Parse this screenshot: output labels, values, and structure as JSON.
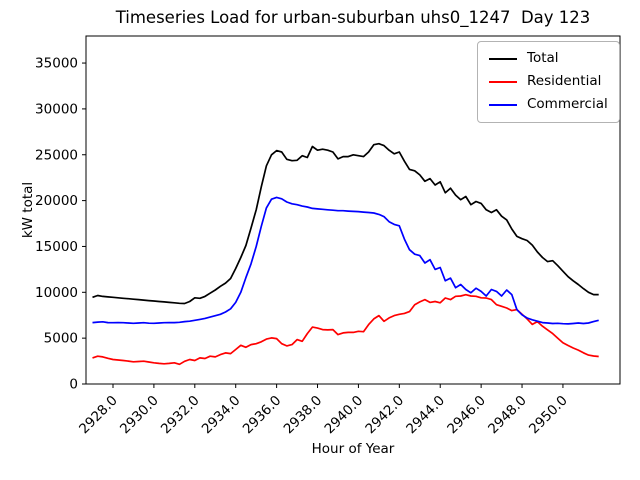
{
  "title": "Timeseries Load for urban-suburban uhs0_1247  Day 123",
  "axes": {
    "x_label": "Hour of Year",
    "y_label": "kW total"
  },
  "legend": {
    "position": "upper right",
    "items": [
      {
        "label": "Total",
        "color": "#000000"
      },
      {
        "label": "Residential",
        "color": "#ff0000"
      },
      {
        "label": "Commercial",
        "color": "#0000ff"
      }
    ]
  },
  "chart_data": {
    "type": "line",
    "title": "Timeseries Load for urban-suburban uhs0_1247  Day 123",
    "xlabel": "Hour of Year",
    "ylabel": "kW total",
    "grid": false,
    "legend_position": "upper right",
    "xlim": [
      2926.68,
      2952.79
    ],
    "ylim": [
      0,
      37950
    ],
    "xticks": [
      2928,
      2930,
      2932,
      2934,
      2936,
      2938,
      2940,
      2942,
      2944,
      2946,
      2948,
      2950
    ],
    "xtick_labels": [
      "2928.0",
      "2930.0",
      "2932.0",
      "2934.0",
      "2936.0",
      "2938.0",
      "2940.0",
      "2942.0",
      "2944.0",
      "2946.0",
      "2948.0",
      "2950.0"
    ],
    "yticks": [
      0,
      5000,
      10000,
      15000,
      20000,
      25000,
      30000,
      35000
    ],
    "ytick_labels": [
      "0",
      "5000",
      "10000",
      "15000",
      "20000",
      "25000",
      "30000",
      "35000"
    ],
    "x": [
      2927.0,
      2927.25,
      2927.5,
      2927.75,
      2928.0,
      2928.25,
      2928.5,
      2928.75,
      2929.0,
      2929.25,
      2929.5,
      2929.75,
      2930.0,
      2930.25,
      2930.5,
      2930.75,
      2931.0,
      2931.25,
      2931.5,
      2931.75,
      2932.0,
      2932.25,
      2932.5,
      2932.75,
      2933.0,
      2933.25,
      2933.5,
      2933.75,
      2934.0,
      2934.25,
      2934.5,
      2934.75,
      2935.0,
      2935.25,
      2935.5,
      2935.75,
      2936.0,
      2936.25,
      2936.5,
      2936.75,
      2937.0,
      2937.25,
      2937.5,
      2937.75,
      2938.0,
      2938.25,
      2938.5,
      2938.75,
      2939.0,
      2939.25,
      2939.5,
      2939.75,
      2940.0,
      2940.25,
      2940.5,
      2940.75,
      2941.0,
      2941.25,
      2941.5,
      2941.75,
      2942.0,
      2942.25,
      2942.5,
      2942.75,
      2943.0,
      2943.25,
      2943.5,
      2943.75,
      2944.0,
      2944.25,
      2944.5,
      2944.75,
      2945.0,
      2945.25,
      2945.5,
      2945.75,
      2946.0,
      2946.25,
      2946.5,
      2946.75,
      2947.0,
      2947.25,
      2947.5,
      2947.75,
      2948.0,
      2948.25,
      2948.5,
      2948.75,
      2949.0,
      2949.25,
      2949.5,
      2949.75,
      2950.0,
      2950.25,
      2950.5,
      2950.75,
      2951.0,
      2951.25,
      2951.5,
      2951.75
    ],
    "series": [
      {
        "name": "Total",
        "color": "#000000",
        "values": [
          9450,
          9650,
          9550,
          9500,
          9450,
          9400,
          9350,
          9300,
          9250,
          9200,
          9150,
          9100,
          9050,
          9000,
          8950,
          8900,
          8850,
          8800,
          8780,
          9000,
          9400,
          9350,
          9550,
          9900,
          10250,
          10650,
          11000,
          11500,
          12600,
          13800,
          15100,
          17000,
          19000,
          21500,
          23800,
          25000,
          25450,
          25300,
          24500,
          24350,
          24400,
          24900,
          24700,
          25900,
          25500,
          25600,
          25500,
          25300,
          24550,
          24800,
          24800,
          25000,
          24900,
          24800,
          25300,
          26100,
          26200,
          26000,
          25500,
          25100,
          25300,
          24300,
          23400,
          23250,
          22800,
          22100,
          22400,
          21700,
          22050,
          20850,
          21350,
          20600,
          20100,
          20450,
          19550,
          19900,
          19700,
          19000,
          18700,
          19000,
          18300,
          17900,
          16900,
          16100,
          15850,
          15650,
          15150,
          14400,
          13800,
          13350,
          13450,
          12900,
          12300,
          11700,
          11250,
          10850,
          10400,
          10000,
          9750,
          9750
        ]
      },
      {
        "name": "Residential",
        "color": "#ff0000",
        "values": [
          2850,
          3030,
          2960,
          2800,
          2670,
          2620,
          2560,
          2500,
          2420,
          2450,
          2490,
          2400,
          2310,
          2250,
          2200,
          2250,
          2310,
          2150,
          2480,
          2670,
          2560,
          2850,
          2780,
          3030,
          2960,
          3210,
          3390,
          3320,
          3760,
          4220,
          4000,
          4300,
          4400,
          4600,
          4900,
          5030,
          4950,
          4400,
          4150,
          4300,
          4840,
          4660,
          5500,
          6200,
          6100,
          5930,
          5900,
          5930,
          5390,
          5570,
          5630,
          5630,
          5750,
          5700,
          6480,
          7100,
          7460,
          6840,
          7210,
          7460,
          7600,
          7700,
          7900,
          8650,
          8950,
          9200,
          8900,
          9000,
          8850,
          9380,
          9200,
          9560,
          9600,
          9740,
          9600,
          9560,
          9400,
          9380,
          9200,
          8650,
          8470,
          8290,
          8000,
          8110,
          7600,
          7100,
          6500,
          6800,
          6300,
          5900,
          5500,
          5000,
          4500,
          4200,
          3930,
          3700,
          3400,
          3150,
          3050,
          3000
        ]
      },
      {
        "name": "Commercial",
        "color": "#0000ff",
        "values": [
          6700,
          6750,
          6780,
          6700,
          6680,
          6700,
          6680,
          6650,
          6620,
          6650,
          6680,
          6630,
          6620,
          6650,
          6680,
          6700,
          6700,
          6730,
          6800,
          6850,
          6950,
          7050,
          7150,
          7300,
          7450,
          7600,
          7850,
          8200,
          8900,
          10000,
          11600,
          13100,
          15000,
          17200,
          19200,
          20150,
          20350,
          20200,
          19850,
          19650,
          19550,
          19400,
          19300,
          19150,
          19100,
          19050,
          19000,
          18950,
          18900,
          18900,
          18850,
          18820,
          18800,
          18750,
          18700,
          18650,
          18500,
          18250,
          17700,
          17400,
          17250,
          15800,
          14650,
          14150,
          14000,
          13200,
          13550,
          12500,
          12700,
          11250,
          11550,
          10500,
          10850,
          10300,
          9950,
          10450,
          10100,
          9600,
          10300,
          10100,
          9600,
          10250,
          9750,
          8100,
          7550,
          7200,
          7000,
          6850,
          6700,
          6650,
          6600,
          6620,
          6580,
          6550,
          6600,
          6650,
          6600,
          6650,
          6800,
          6950
        ]
      }
    ]
  }
}
